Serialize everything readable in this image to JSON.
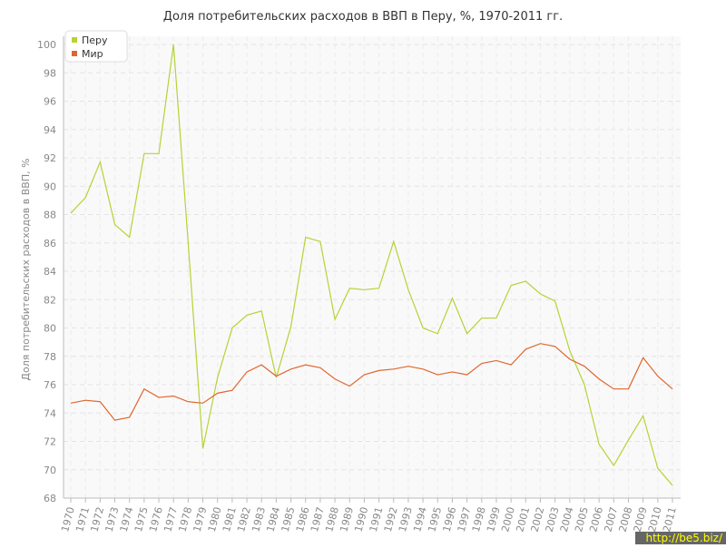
{
  "chart_data": {
    "type": "line",
    "title": "Доля потребительских расходов в ВВП в Перу, %, 1970-2011 гг.",
    "y_label": "Доля потребительских расходов в ВВП, %",
    "categories": [
      "1970",
      "1971",
      "1972",
      "1973",
      "1974",
      "1975",
      "1976",
      "1977",
      "1978",
      "1979",
      "1980",
      "1981",
      "1982",
      "1983",
      "1984",
      "1985",
      "1986",
      "1987",
      "1988",
      "1989",
      "1990",
      "1991",
      "1992",
      "1993",
      "1994",
      "1995",
      "1996",
      "1997",
      "1998",
      "1999",
      "2000",
      "2001",
      "2002",
      "2003",
      "2004",
      "2005",
      "2006",
      "2007",
      "2008",
      "2009",
      "2010",
      "2011"
    ],
    "series": [
      {
        "name": "Перу",
        "color": "#b5d335",
        "values": [
          88.1,
          89.2,
          91.7,
          87.3,
          86.4,
          92.3,
          92.3,
          100.0,
          86.0,
          71.5,
          76.5,
          80.0,
          80.9,
          81.2,
          76.5,
          80.1,
          86.4,
          86.1,
          80.6,
          82.8,
          82.7,
          82.8,
          86.1,
          82.7,
          80.0,
          79.6,
          82.1,
          79.6,
          80.7,
          80.7,
          83.0,
          83.3,
          82.4,
          81.9,
          78.4,
          76.0,
          71.8,
          70.3,
          72.1,
          73.8,
          70.1,
          68.9
        ]
      },
      {
        "name": "Мир",
        "color": "#e0662f",
        "values": [
          74.7,
          74.9,
          74.8,
          73.5,
          73.7,
          75.7,
          75.1,
          75.2,
          74.8,
          74.7,
          75.4,
          75.6,
          76.9,
          77.4,
          76.6,
          77.1,
          77.4,
          77.2,
          76.4,
          75.9,
          76.7,
          77.0,
          77.1,
          77.3,
          77.1,
          76.7,
          76.9,
          76.7,
          77.5,
          77.7,
          77.4,
          78.5,
          78.9,
          78.7,
          77.8,
          77.3,
          76.4,
          75.7,
          75.7,
          77.9,
          76.6,
          75.7
        ]
      }
    ],
    "ylim": [
      68,
      100
    ],
    "yticks": [
      68,
      70,
      72,
      74,
      76,
      78,
      80,
      82,
      84,
      86,
      88,
      90,
      92,
      94,
      96,
      98,
      100
    ],
    "grid": true,
    "legend": "top-left",
    "watermark": "http://be5.biz/"
  }
}
